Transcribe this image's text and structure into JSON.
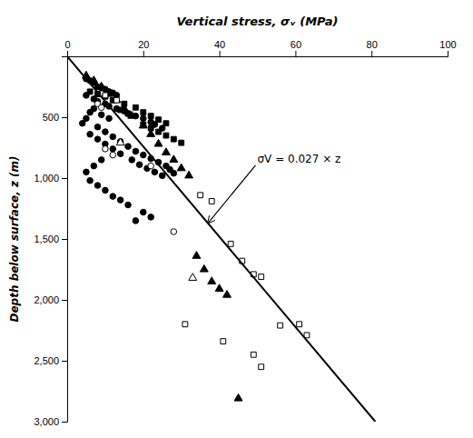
{
  "chart_data": {
    "type": "scatter",
    "xlabel": "Vertical stress, σᵥ (MPa)",
    "ylabel": "Depth below surface, z (m)",
    "xlim": [
      0,
      100
    ],
    "xticks": [
      0,
      20,
      40,
      60,
      80,
      100
    ],
    "ylim": [
      0,
      3000
    ],
    "yticks": [
      500,
      {
        "value": 1000,
        "label": "1,000"
      },
      {
        "value": 1500,
        "label": "1,500"
      },
      {
        "value": 2000,
        "label": "2,000"
      },
      {
        "value": 2500,
        "label": "2,500"
      },
      {
        "value": 3000,
        "label": "3,000"
      }
    ],
    "series": [
      {
        "type": "line",
        "color": "black",
        "line_style": "solid",
        "x": [
          0,
          81
        ],
        "values": [
          0,
          3000
        ]
      },
      {
        "type": "scatter",
        "marker": "circle",
        "color": "black",
        "x": [
          5,
          6,
          7,
          8,
          9,
          10,
          11,
          12,
          13,
          5,
          7,
          8,
          10,
          11,
          13,
          15,
          16,
          18,
          20,
          22,
          23,
          25,
          9,
          11,
          7,
          6,
          5,
          4,
          8,
          10,
          12,
          14,
          16,
          18,
          20,
          22,
          24,
          26,
          27,
          28,
          6,
          8,
          10,
          12,
          14,
          17,
          19,
          21,
          23,
          25,
          9,
          7,
          5,
          6,
          8,
          10,
          12,
          14,
          16,
          20,
          22,
          18
        ],
        "values": [
          185,
          200,
          215,
          250,
          260,
          270,
          290,
          300,
          320,
          320,
          350,
          370,
          390,
          410,
          430,
          450,
          470,
          490,
          510,
          540,
          560,
          590,
          480,
          510,
          430,
          460,
          510,
          550,
          580,
          620,
          660,
          700,
          740,
          780,
          810,
          840,
          870,
          900,
          930,
          960,
          640,
          680,
          720,
          760,
          800,
          850,
          890,
          920,
          950,
          980,
          850,
          900,
          950,
          1020,
          1060,
          1100,
          1150,
          1180,
          1220,
          1280,
          1320,
          1350
        ]
      },
      {
        "type": "scatter",
        "marker": "square",
        "color": "black",
        "x": [
          6,
          8,
          10,
          12,
          15,
          18,
          20,
          22,
          24,
          26,
          14,
          16,
          20,
          22,
          24,
          26,
          28,
          30
        ],
        "values": [
          290,
          310,
          330,
          360,
          390,
          420,
          460,
          490,
          520,
          550,
          440,
          470,
          560,
          590,
          620,
          650,
          680,
          710
        ]
      },
      {
        "type": "scatter",
        "marker": "triangle",
        "color": "black",
        "x": [
          5,
          7,
          9,
          11,
          13,
          15,
          17,
          20,
          22,
          24,
          26,
          28,
          30,
          32,
          34,
          36,
          38,
          40,
          42,
          45
        ],
        "values": [
          160,
          200,
          250,
          310,
          360,
          430,
          490,
          570,
          640,
          720,
          790,
          850,
          920,
          980,
          1640,
          1750,
          1850,
          1910,
          1960,
          2810
        ]
      },
      {
        "type": "scatter",
        "marker": "circle-open",
        "color": "black",
        "x": [
          8,
          9,
          10,
          12,
          22,
          28
        ],
        "values": [
          390,
          420,
          760,
          810,
          900,
          1440
        ]
      },
      {
        "type": "scatter",
        "marker": "square-open",
        "color": "black",
        "x": [
          10,
          13,
          35,
          38,
          43,
          46,
          49,
          51,
          31,
          41,
          49,
          56,
          61,
          63,
          51
        ],
        "values": [
          320,
          360,
          1140,
          1190,
          1540,
          1680,
          1790,
          1810,
          2200,
          2340,
          2450,
          2210,
          2200,
          2290,
          2550
        ]
      },
      {
        "type": "scatter",
        "marker": "triangle-open",
        "color": "black",
        "x": [
          14,
          33
        ],
        "values": [
          710,
          1820
        ]
      }
    ],
    "annotation": {
      "text": "σV = 0.027 × z",
      "x": 50,
      "y": 850,
      "arrow_x": 37,
      "arrow_y": 1370
    }
  }
}
